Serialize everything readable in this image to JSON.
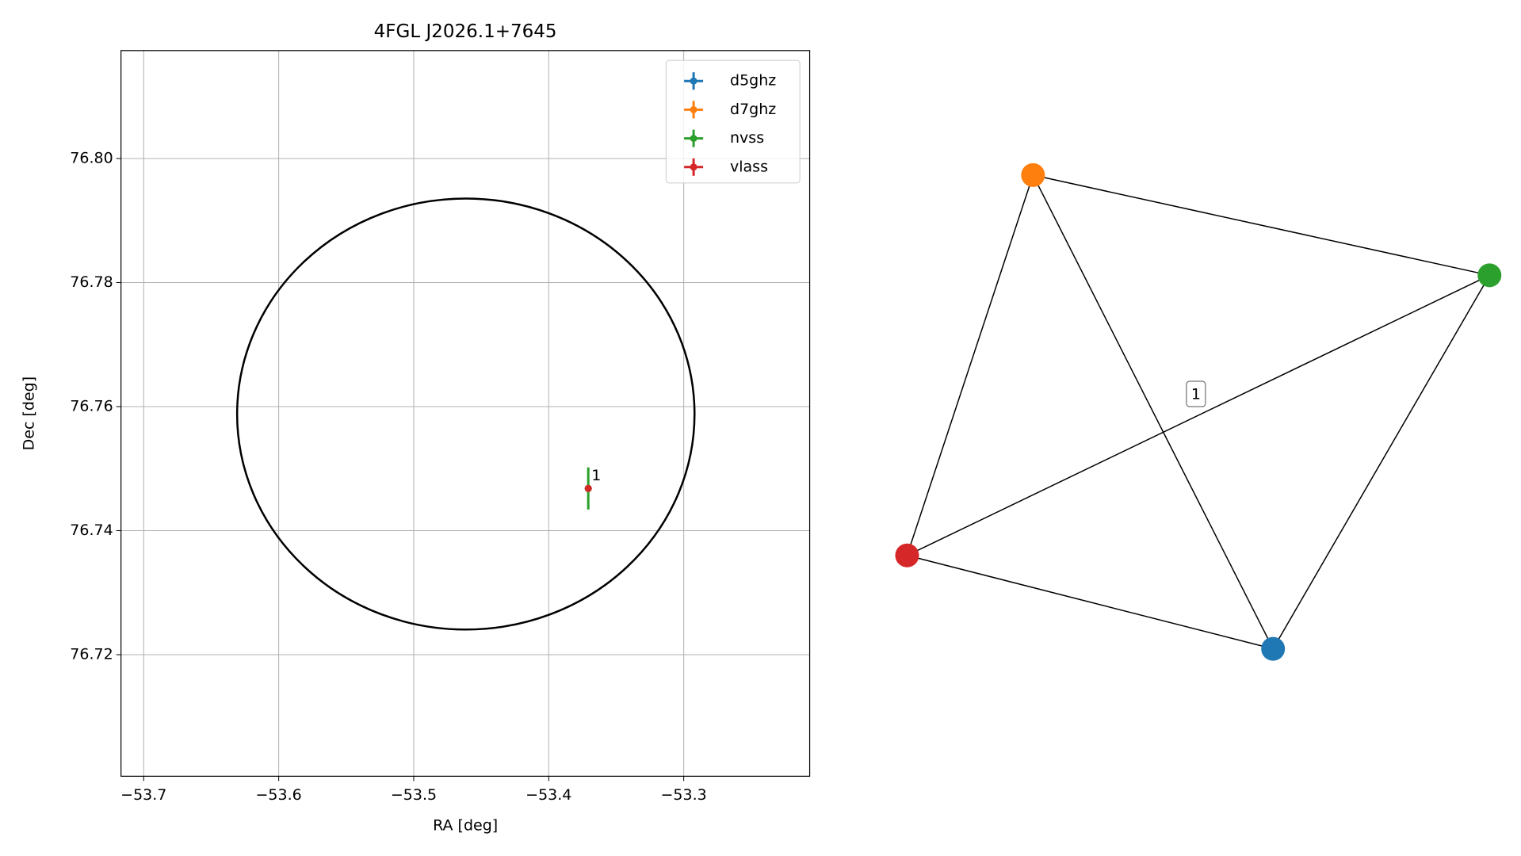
{
  "chart_data": [
    {
      "type": "scatter",
      "title": "4FGL J2026.1+7645",
      "x_label": "RA [deg]",
      "y_label": "Dec [deg]",
      "xlim": [
        -53.7168,
        -53.2067
      ],
      "ylim": [
        76.7004,
        76.8174
      ],
      "xticks": [
        {
          "value": -53.7,
          "label": "−53.7"
        },
        {
          "value": -53.6,
          "label": "−53.6"
        },
        {
          "value": -53.5,
          "label": "−53.5"
        },
        {
          "value": -53.4,
          "label": "−53.4"
        },
        {
          "value": -53.3,
          "label": "−53.3"
        }
      ],
      "yticks": [
        76.72,
        76.74,
        76.76,
        76.78,
        {
          "value": 76.8,
          "label": "76.80"
        }
      ],
      "grid": true,
      "legend": "upper right",
      "series": [
        {
          "name": "d5ghz",
          "color": "#1f77b4",
          "x": [
            -53.3707
          ],
          "y": [
            76.7468
          ],
          "xerr": [
            0
          ],
          "yerr": [
            0
          ]
        },
        {
          "name": "d7ghz",
          "color": "#ff7f0e",
          "x": [
            -53.3707
          ],
          "y": [
            76.7468
          ],
          "xerr": [
            0
          ],
          "yerr": [
            0
          ]
        },
        {
          "name": "nvss",
          "color": "#2ca02c",
          "x": [
            -53.3707
          ],
          "y": [
            76.7468
          ],
          "xerr": [
            0.0006
          ],
          "yerr": [
            0.0034
          ]
        },
        {
          "name": "vlass",
          "color": "#d62728",
          "x": [
            -53.3707
          ],
          "y": [
            76.7468
          ],
          "xerr": [
            0.0003
          ],
          "yerr": [
            0.0003
          ]
        }
      ],
      "annotations": [
        {
          "text": "1",
          "x": -53.3707,
          "y": 76.7468
        }
      ],
      "ellipse": {
        "x": -53.4614,
        "y": 76.7588,
        "width": 0.3388,
        "height": 0.0695,
        "color": "#000000"
      }
    },
    {
      "type": "network",
      "nodes": [
        {
          "color": "#1f77b4"
        },
        {
          "color": "#ff7f0e"
        },
        {
          "color": "#2ca02c"
        },
        {
          "color": "#d62728"
        }
      ],
      "edges": [
        {
          "source": 1,
          "target": 3
        },
        {
          "source": 1,
          "target": 2
        },
        {
          "source": 1,
          "target": 0
        },
        {
          "source": 3,
          "target": 2,
          "label": "1"
        },
        {
          "source": 2,
          "target": 0
        },
        {
          "source": 3,
          "target": 0
        }
      ]
    }
  ]
}
